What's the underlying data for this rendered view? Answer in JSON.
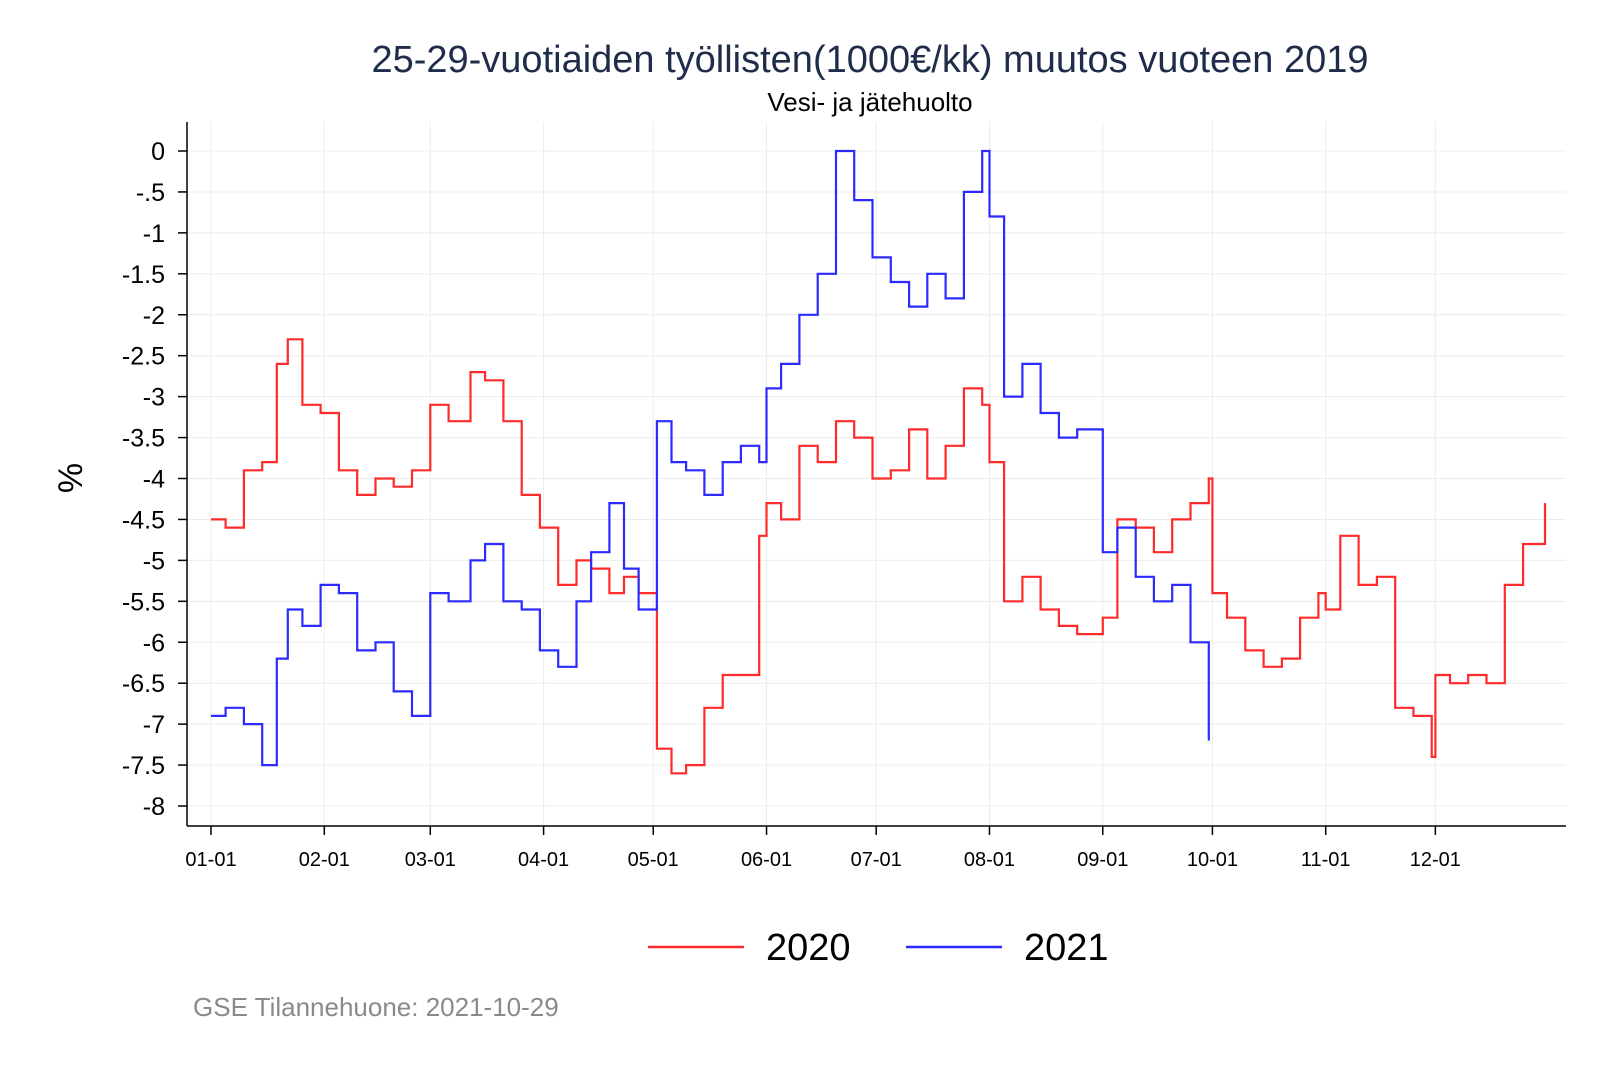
{
  "chart_data": {
    "type": "line",
    "title": "25-29-vuotiaiden työllisten(1000€/kk) muutos vuoteen 2019",
    "subtitle": "Vesi- ja jätehuolto",
    "ylabel": "%",
    "xlabel": "",
    "ylim": [
      -8,
      0
    ],
    "yticks": [
      0,
      -0.5,
      -1,
      -1.5,
      -2,
      -2.5,
      -3,
      -3.5,
      -4,
      -4.5,
      -5,
      -5.5,
      -6,
      -6.5,
      -7,
      -7.5,
      -8
    ],
    "ytick_labels": [
      "0",
      "-.5",
      "-1",
      "-1.5",
      "-2",
      "-2.5",
      "-3",
      "-3.5",
      "-4",
      "-4.5",
      "-5",
      "-5.5",
      "-6",
      "-6.5",
      "-7",
      "-7.5",
      "-8"
    ],
    "xticks": [
      "01-01",
      "02-01",
      "03-01",
      "04-01",
      "05-01",
      "06-01",
      "07-01",
      "08-01",
      "09-01",
      "10-01",
      "11-01",
      "12-01"
    ],
    "grid": true,
    "legend_position": "bottom",
    "series": [
      {
        "name": "2020",
        "color": "#ff2b2b",
        "x": [
          "01-01",
          "01-05",
          "01-10",
          "01-15",
          "01-19",
          "01-22",
          "01-26",
          "01-31",
          "02-05",
          "02-10",
          "02-15",
          "02-20",
          "02-25",
          "03-01",
          "03-06",
          "03-12",
          "03-16",
          "03-21",
          "03-26",
          "03-31",
          "04-05",
          "04-10",
          "04-14",
          "04-19",
          "04-23",
          "04-27",
          "05-02",
          "05-06",
          "05-10",
          "05-15",
          "05-20",
          "05-25",
          "05-30",
          "06-01",
          "06-05",
          "06-10",
          "06-15",
          "06-20",
          "06-25",
          "06-30",
          "07-05",
          "07-10",
          "07-15",
          "07-20",
          "07-25",
          "07-30",
          "08-01",
          "08-05",
          "08-10",
          "08-15",
          "08-20",
          "08-25",
          "08-30",
          "09-01",
          "09-05",
          "09-10",
          "09-15",
          "09-20",
          "09-25",
          "09-30",
          "10-01",
          "10-05",
          "10-10",
          "10-15",
          "10-20",
          "10-25",
          "10-30",
          "11-01",
          "11-05",
          "11-10",
          "11-15",
          "11-20",
          "11-25",
          "11-30",
          "12-01",
          "12-05",
          "12-10",
          "12-15",
          "12-20",
          "12-25",
          "12-31"
        ],
        "values": [
          -4.5,
          -4.6,
          -3.9,
          -3.8,
          -2.6,
          -2.3,
          -3.1,
          -3.2,
          -3.9,
          -4.2,
          -4.0,
          -4.1,
          -3.9,
          -3.1,
          -3.3,
          -2.7,
          -2.8,
          -3.3,
          -4.2,
          -4.6,
          -5.3,
          -5.0,
          -5.1,
          -5.4,
          -5.2,
          -5.4,
          -7.3,
          -7.6,
          -7.5,
          -6.8,
          -6.4,
          -6.4,
          -4.7,
          -4.3,
          -4.5,
          -3.6,
          -3.8,
          -3.3,
          -3.5,
          -4.0,
          -3.9,
          -3.4,
          -4.0,
          -3.6,
          -2.9,
          -3.1,
          -3.8,
          -5.5,
          -5.2,
          -5.6,
          -5.8,
          -5.9,
          -5.9,
          -5.7,
          -4.5,
          -4.6,
          -4.9,
          -4.5,
          -4.3,
          -4.0,
          -5.4,
          -5.7,
          -6.1,
          -6.3,
          -6.2,
          -5.7,
          -5.4,
          -5.6,
          -4.7,
          -5.3,
          -5.2,
          -6.8,
          -6.9,
          -7.4,
          -6.4,
          -6.5,
          -6.4,
          -6.5,
          -5.3,
          -4.8,
          -4.3
        ]
      },
      {
        "name": "2021",
        "color": "#2b2bff",
        "x": [
          "01-01",
          "01-05",
          "01-10",
          "01-15",
          "01-19",
          "01-22",
          "01-26",
          "01-31",
          "02-05",
          "02-10",
          "02-15",
          "02-20",
          "02-25",
          "03-01",
          "03-06",
          "03-12",
          "03-16",
          "03-21",
          "03-26",
          "03-31",
          "04-05",
          "04-10",
          "04-14",
          "04-19",
          "04-23",
          "04-27",
          "05-02",
          "05-06",
          "05-10",
          "05-15",
          "05-20",
          "05-25",
          "05-30",
          "06-01",
          "06-05",
          "06-10",
          "06-15",
          "06-20",
          "06-25",
          "06-30",
          "07-05",
          "07-10",
          "07-15",
          "07-20",
          "07-25",
          "07-30",
          "08-01",
          "08-05",
          "08-10",
          "08-15",
          "08-20",
          "08-25",
          "08-30",
          "09-01",
          "09-05",
          "09-10",
          "09-15",
          "09-20",
          "09-25",
          "09-30"
        ],
        "values": [
          -6.9,
          -6.8,
          -7.0,
          -7.5,
          -6.2,
          -5.6,
          -5.8,
          -5.3,
          -5.4,
          -6.1,
          -6.0,
          -6.6,
          -6.9,
          -5.4,
          -5.5,
          -5.0,
          -4.8,
          -5.5,
          -5.6,
          -6.1,
          -6.3,
          -5.5,
          -4.9,
          -4.3,
          -5.1,
          -5.6,
          -3.3,
          -3.8,
          -3.9,
          -4.2,
          -3.8,
          -3.6,
          -3.8,
          -2.9,
          -2.6,
          -2.0,
          -1.5,
          0.0,
          -0.6,
          -1.3,
          -1.6,
          -1.9,
          -1.5,
          -1.8,
          -0.5,
          0.0,
          -0.8,
          -3.0,
          -2.6,
          -3.2,
          -3.5,
          -3.4,
          -3.4,
          -4.9,
          -4.6,
          -5.2,
          -5.5,
          -5.3,
          -6.0,
          -7.2
        ]
      }
    ]
  },
  "footer": "GSE Tilannehuone: 2021-10-29"
}
